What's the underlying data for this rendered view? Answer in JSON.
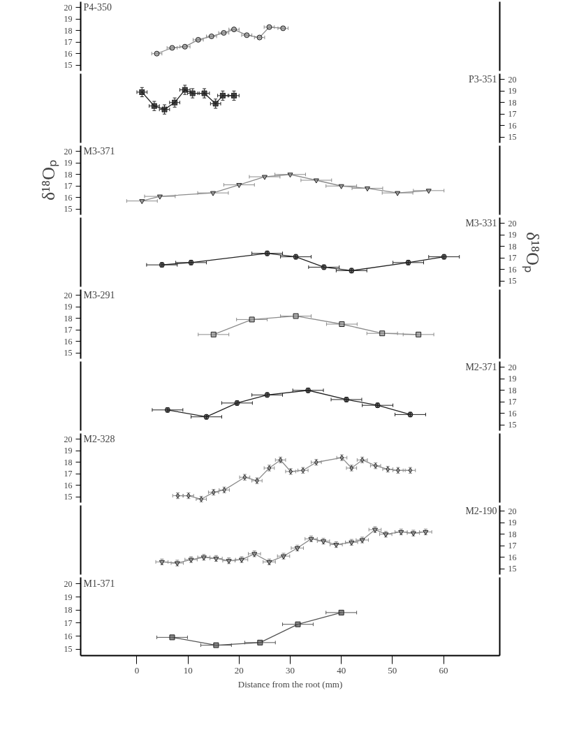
{
  "chart_data": [
    {
      "type": "line",
      "title": "P4-350",
      "xlim": [
        -11,
        71
      ],
      "ylim": [
        14.5,
        20.5
      ],
      "yticks": [
        15,
        16,
        17,
        18,
        19,
        20
      ],
      "tick_labels": "y",
      "marker": "circle",
      "line_style": "solid",
      "x": [
        3.9,
        6.9,
        9.4,
        12.0,
        14.6,
        17.0,
        19.0,
        21.5,
        24.0,
        25.9,
        28.6
      ],
      "series": [
        {
          "color": "#8c8c8c",
          "values": [
            16.0,
            16.5,
            16.6,
            17.2,
            17.5,
            17.8,
            18.1,
            17.6,
            17.4,
            18.3,
            18.2
          ],
          "xerrors": [
            1,
            1,
            1,
            1,
            1,
            1,
            1,
            1,
            1,
            1,
            1
          ]
        }
      ]
    },
    {
      "type": "line",
      "title": "P3-351",
      "xlim": [
        -11,
        71
      ],
      "y2lim": [
        14.5,
        20.5
      ],
      "y2ticks": [
        15,
        16,
        17,
        18,
        19,
        20
      ],
      "tick_labels": "y",
      "marker": "cross",
      "line_style": "solid",
      "x": [
        1.0,
        3.4,
        5.4,
        7.4,
        9.4,
        10.9,
        13.2,
        15.4,
        16.8,
        19.0
      ],
      "series": [
        {
          "axis": "y2",
          "color": "#222222",
          "values": [
            18.9,
            17.7,
            17.4,
            18.0,
            19.1,
            18.8,
            18.8,
            17.9,
            18.6,
            18.6
          ],
          "xerrors": [
            1,
            1,
            1,
            1,
            1,
            1,
            1,
            1,
            1,
            1
          ],
          "errors": [
            0.4,
            0.4,
            0.4,
            0.4,
            0.4,
            0.4,
            0.4,
            0.4,
            0.4,
            0.4
          ]
        }
      ]
    },
    {
      "type": "line",
      "title": "M3-371",
      "ylabel": "δ¹⁸Oₚ",
      "xlim": [
        -11,
        71
      ],
      "ylim": [
        14.5,
        20.5
      ],
      "yticks": [
        15,
        16,
        17,
        18,
        19,
        20
      ],
      "tick_labels": "y",
      "marker": "triangle",
      "line_style": "solid",
      "x": [
        1.0,
        4.5,
        14.9,
        20.0,
        25.0,
        30.0,
        35.1,
        40.0,
        45.1,
        51.0,
        57.1
      ],
      "series": [
        {
          "color": "#8c8c8c",
          "values": [
            15.7,
            16.1,
            16.4,
            17.1,
            17.8,
            18.0,
            17.5,
            17.0,
            16.8,
            16.4,
            16.6
          ],
          "xerrors": [
            3,
            3,
            3,
            3,
            3,
            3,
            3,
            3,
            3,
            3,
            3
          ]
        }
      ]
    },
    {
      "type": "line",
      "title": "M3-331",
      "y2label": "δ¹⁸Oₚ",
      "xlim": [
        -11,
        71
      ],
      "y2lim": [
        14.5,
        20.5
      ],
      "y2ticks": [
        15,
        16,
        17,
        18,
        19,
        20
      ],
      "tick_labels": "y",
      "marker": "circle",
      "line_style": "solid",
      "x": [
        4.9,
        10.6,
        25.5,
        31.1,
        36.6,
        42.0,
        53.1,
        60.1
      ],
      "series": [
        {
          "axis": "y2",
          "color": "#222222",
          "values": [
            16.4,
            16.6,
            17.4,
            17.1,
            16.2,
            15.9,
            16.6,
            17.1
          ],
          "xerrors": [
            3,
            3,
            3,
            3,
            3,
            3,
            3,
            3
          ],
          "errors": [
            0.2,
            0.2,
            0.2,
            0.2,
            0.2,
            0.2,
            0.2,
            0.2
          ]
        }
      ]
    },
    {
      "type": "line",
      "title": "M3-291",
      "xlim": [
        -11,
        71
      ],
      "ylim": [
        14.5,
        20.5
      ],
      "yticks": [
        15,
        16,
        17,
        18,
        19,
        20
      ],
      "tick_labels": "y",
      "marker": "square",
      "line_style": "solid",
      "x": [
        15.0,
        22.5,
        31.1,
        40.1,
        48.0,
        55.1
      ],
      "series": [
        {
          "color": "#8c8c8c",
          "values": [
            16.6,
            17.9,
            18.2,
            17.5,
            16.7,
            16.6
          ],
          "xerrors": [
            3,
            3,
            3,
            3,
            3,
            3
          ]
        }
      ]
    },
    {
      "type": "line",
      "title": "M2-371",
      "xlim": [
        -11,
        71
      ],
      "y2lim": [
        14.5,
        20.5
      ],
      "y2ticks": [
        15,
        16,
        17,
        18,
        19,
        20
      ],
      "tick_labels": "y",
      "marker": "circle",
      "line_style": "solid",
      "x": [
        6.0,
        13.6,
        19.6,
        25.5,
        33.5,
        41.0,
        47.1,
        53.5
      ],
      "series": [
        {
          "axis": "y2",
          "color": "#222222",
          "values": [
            16.3,
            15.7,
            16.9,
            17.6,
            18.0,
            17.2,
            16.7,
            15.9
          ],
          "xerrors": [
            3,
            3,
            3,
            3,
            3,
            3,
            3,
            3
          ],
          "errors": [
            0.2,
            0.2,
            0.2,
            0.2,
            0.2,
            0.2,
            0.2,
            0.2
          ]
        }
      ]
    },
    {
      "type": "line",
      "title": "M2-328",
      "xlim": [
        -11,
        71
      ],
      "ylim": [
        14.5,
        20.5
      ],
      "yticks": [
        15,
        16,
        17,
        18,
        19,
        20
      ],
      "tick_labels": "y",
      "marker": "diamond",
      "line_style": "solid",
      "x": [
        8.0,
        10.1,
        12.6,
        15.0,
        17.1,
        21.1,
        23.5,
        25.9,
        28.1,
        30.1,
        32.5,
        35.1,
        40.1,
        42.0,
        44.1,
        46.7,
        49.1,
        51.1,
        53.5
      ],
      "series": [
        {
          "color": "#8c8c8c",
          "values": [
            15.1,
            15.1,
            14.8,
            15.4,
            15.6,
            16.7,
            16.4,
            17.5,
            18.2,
            17.2,
            17.3,
            18.0,
            18.4,
            17.5,
            18.2,
            17.7,
            17.4,
            17.3,
            17.3
          ],
          "xerrors": [
            1,
            1,
            1,
            1,
            1,
            1,
            1,
            1,
            1,
            1,
            1,
            1,
            1,
            1,
            1,
            1,
            1,
            1,
            1
          ],
          "errors": [
            0.25,
            0.25,
            0.25,
            0.25,
            0.25,
            0.25,
            0.25,
            0.25,
            0.25,
            0.25,
            0.25,
            0.25,
            0.25,
            0.25,
            0.25,
            0.25,
            0.25,
            0.25,
            0.25
          ]
        }
      ]
    },
    {
      "type": "line",
      "title": "M2-190",
      "xlim": [
        -11,
        71
      ],
      "y2lim": [
        14.5,
        20.5
      ],
      "y2ticks": [
        15,
        16,
        17,
        18,
        19,
        20
      ],
      "tick_labels": "y",
      "marker": "triangle",
      "line_style": "solid",
      "x": [
        4.9,
        7.9,
        10.6,
        13.1,
        15.5,
        18.0,
        20.5,
        23.0,
        25.9,
        28.7,
        31.4,
        34.1,
        36.5,
        39.0,
        42.0,
        44.1,
        46.6,
        48.7,
        51.7,
        54.1,
        56.5
      ],
      "series": [
        {
          "axis": "y2",
          "color": "#8c8c8c",
          "values": [
            15.6,
            15.5,
            15.8,
            16.0,
            15.9,
            15.7,
            15.8,
            16.3,
            15.6,
            16.1,
            16.8,
            17.6,
            17.4,
            17.1,
            17.3,
            17.5,
            18.4,
            18.0,
            18.2,
            18.1,
            18.2
          ],
          "xerrors": [
            1.2,
            1.2,
            1.2,
            1.2,
            1.2,
            1.2,
            1.2,
            1.2,
            1.2,
            1.2,
            1.2,
            1.2,
            1.2,
            1.2,
            1.2,
            1.2,
            1.2,
            1.2,
            1.2,
            1.2,
            1.2
          ],
          "errors": [
            0.25,
            0.25,
            0.25,
            0.25,
            0.25,
            0.25,
            0.25,
            0.25,
            0.25,
            0.25,
            0.25,
            0.25,
            0.25,
            0.25,
            0.25,
            0.25,
            0.25,
            0.25,
            0.25,
            0.25,
            0.25
          ]
        }
      ]
    },
    {
      "type": "line",
      "title": "M1-371",
      "xlabel": "Distance from the root (mm)",
      "xlim": [
        -11,
        71
      ],
      "xticks": [
        0,
        10,
        20,
        30,
        40,
        50,
        60
      ],
      "ylim": [
        14.5,
        20.5
      ],
      "yticks": [
        15,
        16,
        17,
        18,
        19,
        20
      ],
      "marker": "square",
      "line_style": "solid",
      "x": [
        6.9,
        15.5,
        24.1,
        31.5,
        40.0
      ],
      "series": [
        {
          "color": "#555555",
          "values": [
            15.9,
            15.3,
            15.5,
            16.9,
            17.8
          ],
          "xerrors": [
            3,
            3,
            3,
            3,
            3
          ]
        }
      ]
    }
  ]
}
